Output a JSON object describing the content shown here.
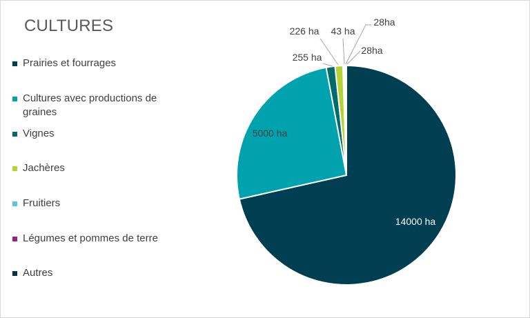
{
  "chart_data": {
    "type": "pie",
    "title": "CULTURES",
    "legend_position": "left",
    "categories": [
      "Prairies et fourrages",
      "Cultures avec productions de graines",
      "Vignes",
      "Jachères",
      "Fruitiers",
      "Légumes et pommes de terre",
      "Autres"
    ],
    "values": [
      14000,
      5000,
      255,
      226,
      43,
      28,
      28
    ],
    "data_labels": [
      "14000 ha",
      "5000 ha",
      "255 ha",
      "226 ha",
      "43 ha",
      "28ha",
      "28ha"
    ],
    "colors": [
      "#003f52",
      "#00a3ad",
      "#006b6b",
      "#b5d334",
      "#5ec5d6",
      "#9b1f7e",
      "#0b3142"
    ]
  }
}
